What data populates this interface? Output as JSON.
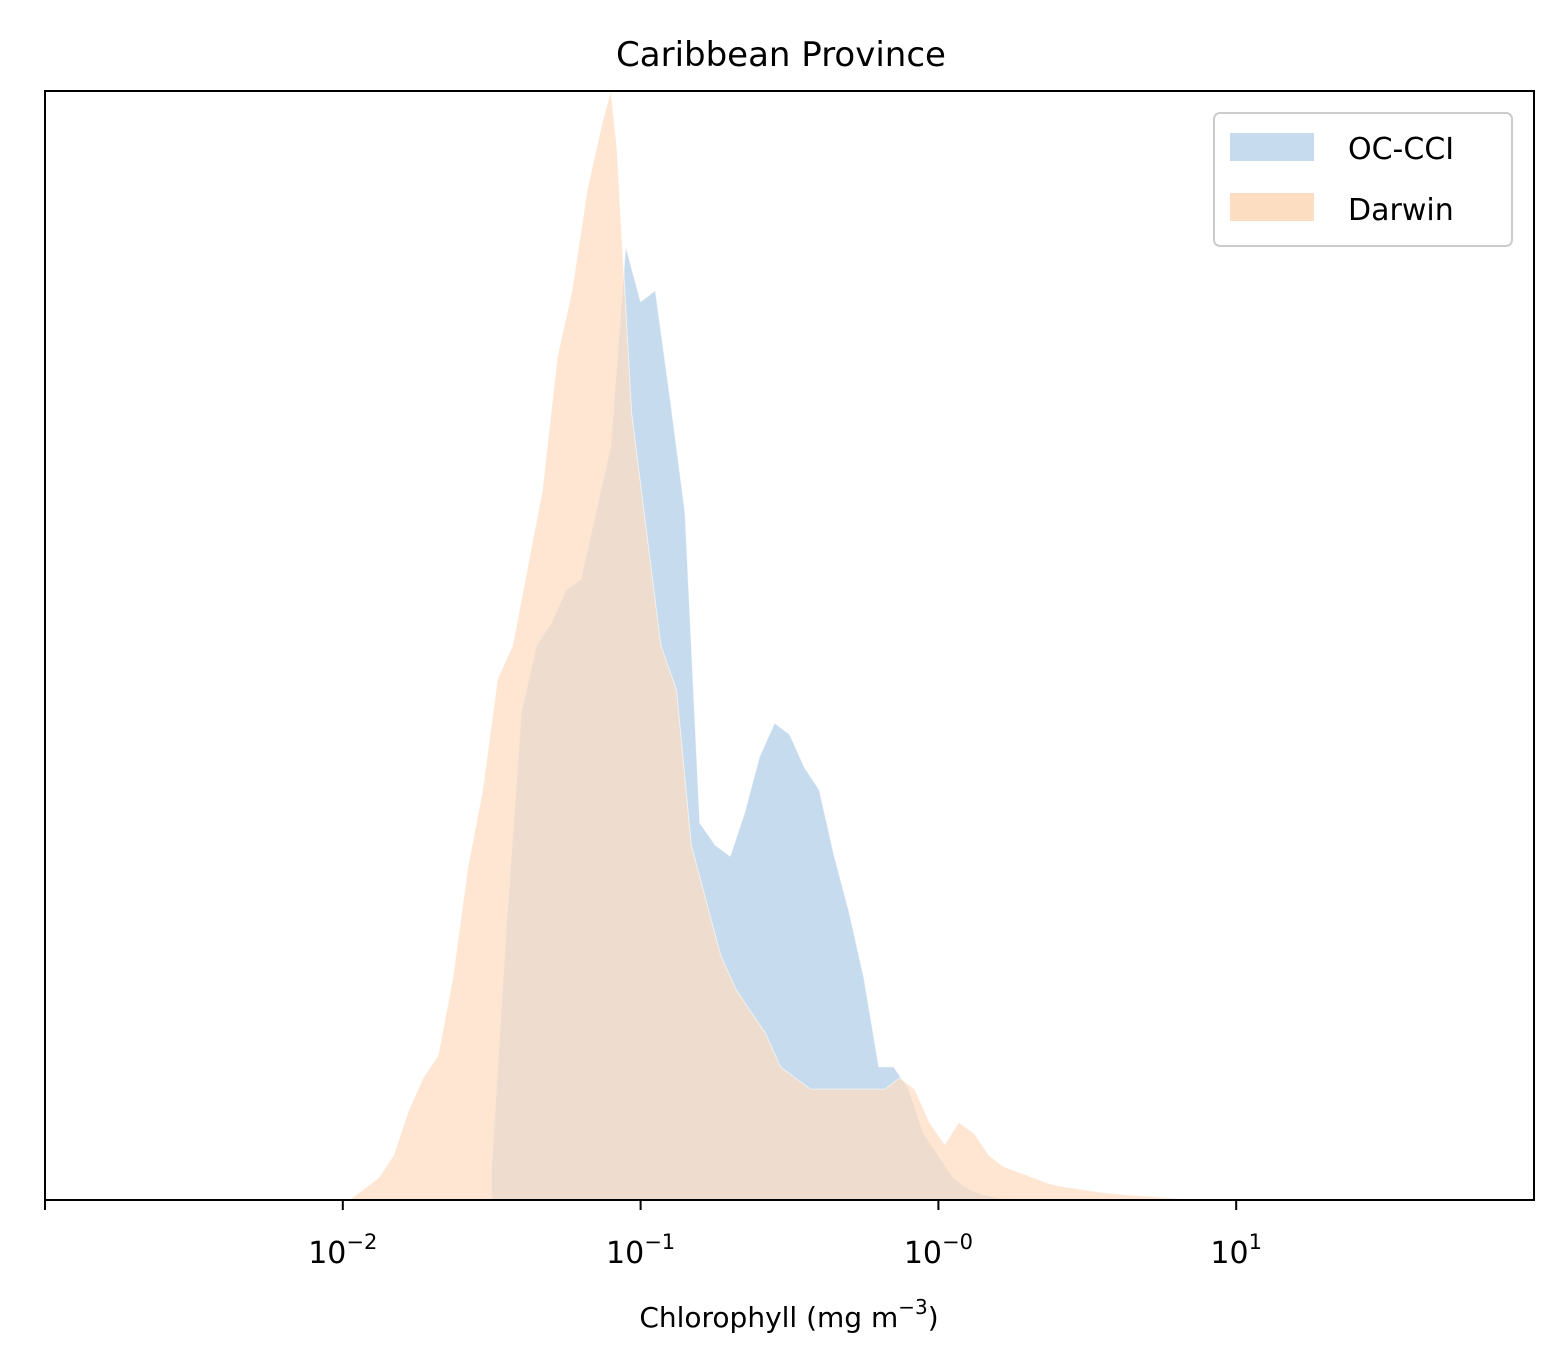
{
  "chart_data": {
    "type": "area",
    "title": "Caribbean Province",
    "xlabel": "Chlorophyll  (mg m",
    "xlabel_exp": "−3",
    "xlabel_close": ")",
    "ylabel": "",
    "xscale": "log",
    "xlim": [
      0.001,
      100
    ],
    "ylim": [
      0,
      1.0
    ],
    "yticks_visible": false,
    "grid": false,
    "legend_position": "top-right",
    "x_ticks": [
      {
        "value": 0.01,
        "base": "10",
        "exp": "−2"
      },
      {
        "value": 0.1,
        "base": "10",
        "exp": "−1"
      },
      {
        "value": 1,
        "base": "10",
        "exp": "−0"
      },
      {
        "value": 10,
        "base": "10",
        "exp": "1"
      }
    ],
    "series": [
      {
        "name": "OC-CCI",
        "color": "#c6dbed",
        "x": [
          0.0316,
          0.0355,
          0.0398,
          0.0447,
          0.0501,
          0.0562,
          0.0631,
          0.0708,
          0.0794,
          0.0891,
          0.1,
          0.112,
          0.126,
          0.141,
          0.158,
          0.178,
          0.2,
          0.224,
          0.251,
          0.282,
          0.316,
          0.355,
          0.398,
          0.447,
          0.501,
          0.562,
          0.631,
          0.708,
          0.794,
          0.891,
          1.0,
          1.12,
          1.26,
          1.41,
          1.58,
          1.78,
          2.0,
          2.24,
          2.51,
          2.82,
          3.16
        ],
        "y": [
          0.03,
          0.25,
          0.44,
          0.5,
          0.52,
          0.55,
          0.56,
          0.62,
          0.68,
          0.86,
          0.81,
          0.82,
          0.72,
          0.62,
          0.34,
          0.32,
          0.31,
          0.35,
          0.4,
          0.43,
          0.42,
          0.39,
          0.37,
          0.31,
          0.26,
          0.2,
          0.12,
          0.12,
          0.1,
          0.06,
          0.04,
          0.02,
          0.01,
          0.005,
          0.002,
          0.001,
          0,
          0,
          0,
          0,
          0
        ]
      },
      {
        "name": "Darwin",
        "color": "#fdddc2",
        "x": [
          0.0105,
          0.0118,
          0.0132,
          0.0148,
          0.0166,
          0.0186,
          0.0209,
          0.0234,
          0.0263,
          0.0295,
          0.0331,
          0.0372,
          0.0417,
          0.0468,
          0.0525,
          0.0589,
          0.0661,
          0.0741,
          0.0794,
          0.0832,
          0.0933,
          0.105,
          0.117,
          0.132,
          0.148,
          0.166,
          0.186,
          0.209,
          0.234,
          0.263,
          0.295,
          0.331,
          0.372,
          0.417,
          0.468,
          0.525,
          0.589,
          0.661,
          0.741,
          0.832,
          0.933,
          1.05,
          1.17,
          1.32,
          1.48,
          1.66,
          1.86,
          2.09,
          2.34,
          2.63,
          2.95,
          3.31,
          3.72,
          4.17,
          4.68,
          5.25,
          5.89,
          6.61,
          7.41,
          8.32
        ],
        "y": [
          0,
          0.01,
          0.02,
          0.04,
          0.08,
          0.11,
          0.13,
          0.2,
          0.3,
          0.37,
          0.47,
          0.5,
          0.57,
          0.64,
          0.76,
          0.82,
          0.91,
          0.97,
          1.0,
          0.95,
          0.71,
          0.6,
          0.5,
          0.46,
          0.32,
          0.27,
          0.22,
          0.19,
          0.17,
          0.15,
          0.12,
          0.11,
          0.1,
          0.1,
          0.1,
          0.1,
          0.1,
          0.1,
          0.11,
          0.1,
          0.07,
          0.05,
          0.07,
          0.06,
          0.04,
          0.03,
          0.025,
          0.02,
          0.015,
          0.012,
          0.01,
          0.008,
          0.006,
          0.005,
          0.004,
          0.003,
          0.002,
          0.001,
          0.0005,
          0
        ]
      }
    ]
  }
}
